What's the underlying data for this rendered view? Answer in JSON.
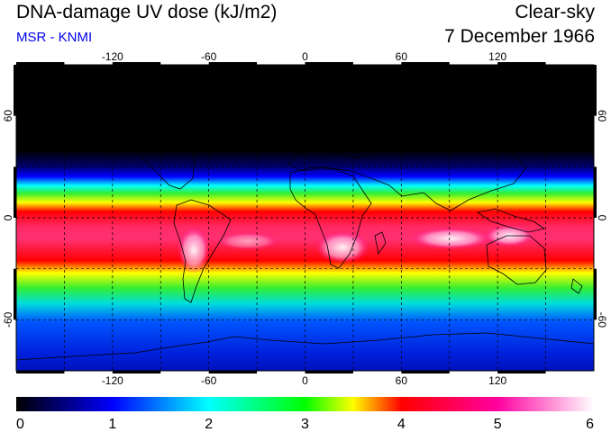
{
  "header": {
    "title": "DNA-damage UV dose (kJ/m2)",
    "subtitle": "MSR - KNMI",
    "sky_condition": "Clear-sky",
    "date": "7 December 1966",
    "subtitle_color": "#0000ee"
  },
  "map": {
    "projection": "equirectangular",
    "lon_range": [
      -180,
      180
    ],
    "lat_range": [
      -90,
      90
    ],
    "lon_ticks": [
      -120,
      -60,
      0,
      60,
      120
    ],
    "lat_ticks": [
      60,
      0,
      -60
    ],
    "lon_labels": [
      "-120",
      "-60",
      "0",
      "60",
      "120"
    ],
    "lat_labels": [
      "60",
      "0",
      "-60"
    ],
    "grid": "dashed every 30 degrees",
    "coastlines": true,
    "field": {
      "variable": "DNA-damage UV dose",
      "unit": "kJ/m2",
      "highest_region": "southern tropics (~5-35S), peaks >5.5 over southern Africa, Australia, Andes",
      "polar_night_north_of": 60
    }
  },
  "colorbar": {
    "min": 0,
    "max": 6,
    "tick_labels": [
      "0",
      "1",
      "2",
      "3",
      "4",
      "5",
      "6"
    ],
    "colors": [
      "#000000",
      "#0000ff",
      "#00ffff",
      "#00ff00",
      "#ffff00",
      "#ff0000",
      "#ff00a0",
      "#ffffff"
    ]
  }
}
